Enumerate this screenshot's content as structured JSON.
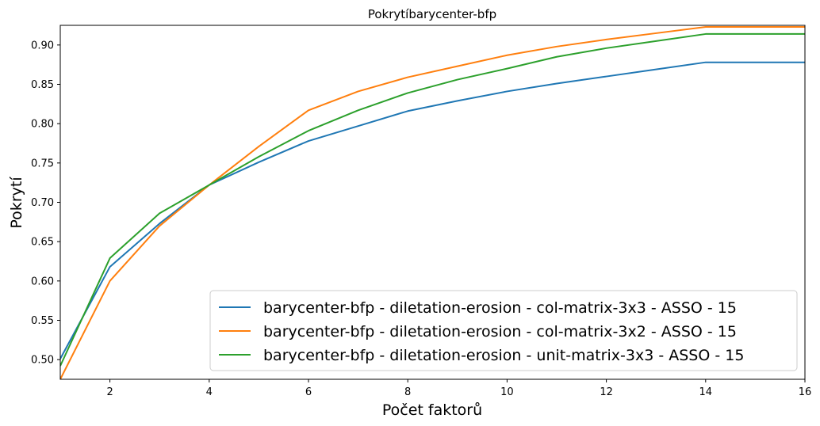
{
  "chart_data": {
    "type": "line",
    "title": "Pokrytíbarycenter-bfp",
    "xlabel": "Počet faktorů",
    "ylabel": "Pokrytí",
    "xlim": [
      1,
      16
    ],
    "ylim": [
      0.475,
      0.925
    ],
    "xticks": [
      2,
      4,
      6,
      8,
      10,
      12,
      14,
      16
    ],
    "yticks": [
      0.5,
      0.55,
      0.6,
      0.65,
      0.7,
      0.75,
      0.8,
      0.85,
      0.9
    ],
    "ytick_labels": [
      "0.50",
      "0.55",
      "0.60",
      "0.65",
      "0.70",
      "0.75",
      "0.80",
      "0.85",
      "0.90"
    ],
    "grid": false,
    "legend_position": "lower-right",
    "x": [
      1,
      2,
      3,
      4,
      5,
      6,
      7,
      8,
      9,
      10,
      11,
      12,
      13,
      14,
      15,
      16
    ],
    "series": [
      {
        "name": "barycenter-bfp - diletation-erosion - col-matrix-3x3 - ASSO - 15",
        "color": "#1f77b4",
        "values": [
          0.501,
          0.618,
          0.673,
          0.722,
          0.751,
          0.778,
          0.797,
          0.816,
          0.829,
          0.841,
          0.851,
          0.86,
          0.869,
          0.878,
          0.878,
          0.878
        ]
      },
      {
        "name": "barycenter-bfp - diletation-erosion - col-matrix-3x2 - ASSO - 15",
        "color": "#ff7f0e",
        "values": [
          0.475,
          0.6,
          0.67,
          0.722,
          0.771,
          0.817,
          0.841,
          0.859,
          0.873,
          0.887,
          0.898,
          0.907,
          0.915,
          0.923,
          0.923,
          0.923
        ]
      },
      {
        "name": "barycenter-bfp - diletation-erosion - unit-matrix-3x3 - ASSO - 15",
        "color": "#2ca02c",
        "values": [
          0.492,
          0.629,
          0.686,
          0.722,
          0.758,
          0.791,
          0.817,
          0.839,
          0.856,
          0.87,
          0.885,
          0.896,
          0.905,
          0.914,
          0.914,
          0.914
        ]
      }
    ]
  }
}
